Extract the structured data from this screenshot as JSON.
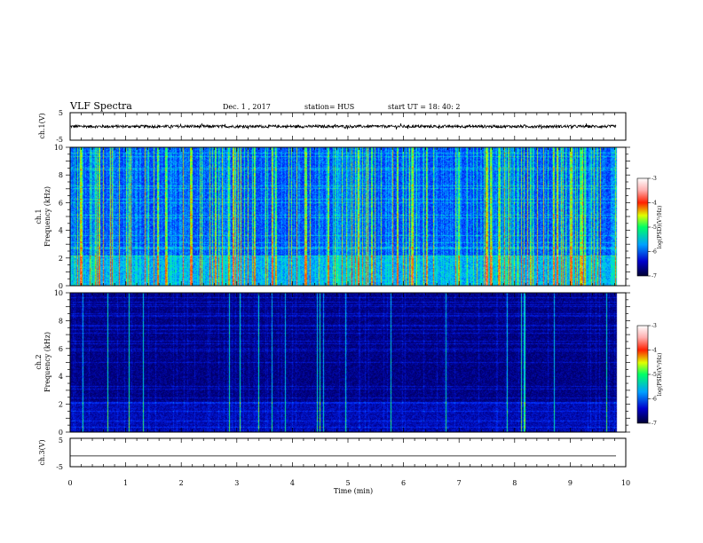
{
  "header": {
    "title": "VLF Spectra",
    "date": "Dec. 1 , 2017",
    "station": "station= HUS",
    "start": "start UT =   18: 40: 2"
  },
  "chart_data": [
    {
      "type": "line",
      "panel": "ch1-waveform",
      "ylabel": "ch.1(V)",
      "ylim": [
        -5,
        5
      ],
      "y_ticks": [
        "5",
        "-5"
      ],
      "xlim": [
        0,
        10
      ],
      "description_level": 0,
      "amplitude": 0.5,
      "line_color": "#000000"
    },
    {
      "type": "heatmap",
      "panel": "ch1-spectrogram",
      "ylabel": "ch.1",
      "ylabel2": "Frequency (kHz)",
      "ylim": [
        0,
        10
      ],
      "y_ticks": [
        "0",
        "2",
        "4",
        "6",
        "8",
        "10"
      ],
      "xlim": [
        0,
        10
      ],
      "color_scale": {
        "label": "log(PSD)(V²/Hz)",
        "ticks": [
          "-3",
          "-4",
          "-5",
          "-6",
          "-7"
        ],
        "range": [
          -7,
          -3
        ]
      },
      "intensity": "high"
    },
    {
      "type": "heatmap",
      "panel": "ch2-spectrogram",
      "ylabel": "ch.2",
      "ylabel2": "Frequency (kHz)",
      "ylim": [
        0,
        10
      ],
      "y_ticks": [
        "0",
        "2",
        "4",
        "6",
        "8",
        "10"
      ],
      "xlim": [
        0,
        10
      ],
      "color_scale": {
        "label": "log(PSD)(V²/Hz)",
        "ticks": [
          "-3",
          "-4",
          "-5",
          "-6",
          "-7"
        ],
        "range": [
          -7,
          -3
        ]
      },
      "intensity": "low"
    },
    {
      "type": "line",
      "panel": "ch3-waveform",
      "ylabel": "ch.3(V)",
      "ylim": [
        -5,
        5
      ],
      "y_ticks": [
        "5",
        "-5"
      ],
      "xlim": [
        0,
        10
      ],
      "level": -1.2,
      "amplitude": 0,
      "line_color": "#000000"
    }
  ],
  "xaxis": {
    "label": "Time (min)",
    "ticks": [
      "0",
      "1",
      "2",
      "3",
      "4",
      "5",
      "6",
      "7",
      "8",
      "9",
      "10"
    ],
    "range": [
      0,
      10
    ],
    "data_end": 9.83
  },
  "colors": {
    "colormap": [
      "#000033",
      "#00008b",
      "#0000ff",
      "#00bfff",
      "#00ff7f",
      "#ffff00",
      "#ff0000",
      "#ffffff"
    ]
  }
}
